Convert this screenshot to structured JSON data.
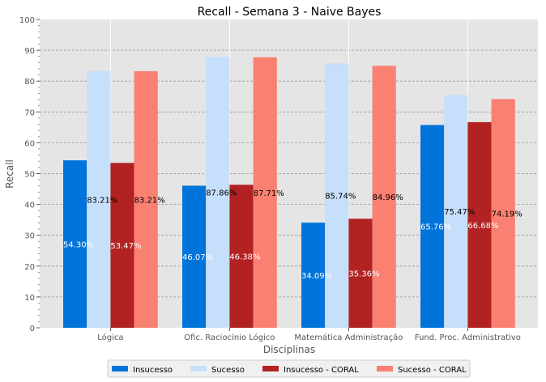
{
  "chart_data": {
    "type": "bar",
    "title": "Recall - Semana 3 - Naive Bayes",
    "xlabel": "Disciplinas",
    "ylabel": "Recall",
    "ylim": [
      0,
      100
    ],
    "yticks": [
      0,
      10,
      20,
      30,
      40,
      50,
      60,
      70,
      80,
      90,
      100
    ],
    "grid": true,
    "legend_position": "bottom-center",
    "categories": [
      "Lógica",
      "Ofic. Raciocínio Lógico",
      "Matemática Administração",
      "Fund. Proc. Administrativo"
    ],
    "series": [
      {
        "name": "Insucesso",
        "color": "#0074D9",
        "label_color": "#ffffff",
        "values": [
          54.3,
          46.07,
          34.09,
          65.76
        ],
        "labels": [
          "54.30%",
          "46.07%",
          "34.09%",
          "65.76%"
        ]
      },
      {
        "name": "Sucesso",
        "color": "#C6DFFA",
        "label_color": "#000000",
        "values": [
          83.21,
          87.86,
          85.74,
          75.47
        ],
        "labels": [
          "83.21%",
          "87.86%",
          "85.74%",
          "75.47%"
        ]
      },
      {
        "name": "Insucesso - CORAL",
        "color": "#B22222",
        "label_color": "#ffffff",
        "values": [
          53.47,
          46.38,
          35.36,
          66.68
        ],
        "labels": [
          "53.47%",
          "46.38%",
          "35.36%",
          "66.68%"
        ]
      },
      {
        "name": "Sucesso - CORAL",
        "color": "#FA8072",
        "label_color": "#000000",
        "values": [
          83.21,
          87.71,
          84.96,
          74.19
        ],
        "labels": [
          "83.21%",
          "87.71%",
          "84.96%",
          "74.19%"
        ]
      }
    ]
  }
}
